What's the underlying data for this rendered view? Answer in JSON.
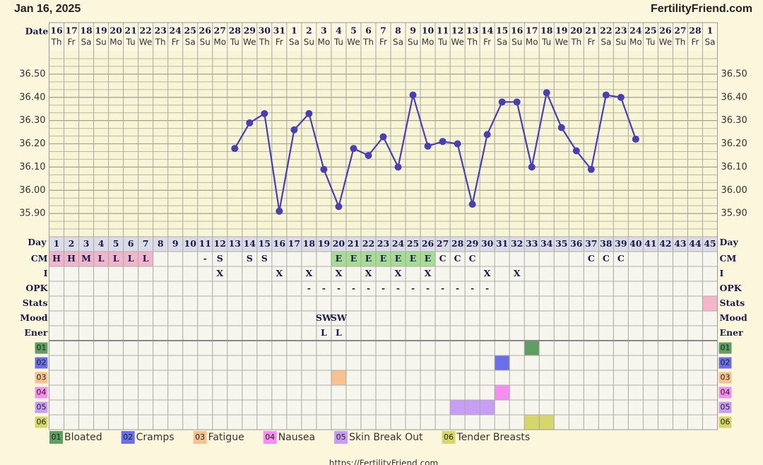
{
  "header": {
    "date": "Jan 16, 2025",
    "site": "FertilityFriend.com",
    "date_label": "Date",
    "day_label": "Day"
  },
  "footer_url": "https://FertilityFriend.com",
  "chart_data": {
    "type": "line",
    "categories": [
      "16",
      "17",
      "18",
      "19",
      "20",
      "21",
      "22",
      "23",
      "24",
      "25",
      "26",
      "27",
      "28",
      "29",
      "30",
      "31",
      "1",
      "2",
      "3",
      "4",
      "5",
      "6",
      "7",
      "8",
      "9",
      "10",
      "11",
      "12",
      "13",
      "14",
      "15",
      "16",
      "17",
      "18",
      "19",
      "20",
      "21",
      "22",
      "23",
      "24",
      "25",
      "26",
      "27",
      "28",
      "1"
    ],
    "weekdays": [
      "Th",
      "Fr",
      "Sa",
      "Su",
      "Mo",
      "Tu",
      "We",
      "Th",
      "Fr",
      "Sa",
      "Su",
      "Mo",
      "Tu",
      "We",
      "Th",
      "Fr",
      "Sa",
      "Su",
      "Mo",
      "Tu",
      "We",
      "Th",
      "Fr",
      "Sa",
      "Su",
      "Mo",
      "Tu",
      "We",
      "Th",
      "Fr",
      "Sa",
      "Su",
      "Mo",
      "Tu",
      "We",
      "Th",
      "Fr",
      "Sa",
      "Su",
      "Mo",
      "Tu",
      "We",
      "Th",
      "Fr",
      "Sa"
    ],
    "cycle_days": [
      1,
      2,
      3,
      4,
      5,
      6,
      7,
      8,
      9,
      10,
      11,
      12,
      13,
      14,
      15,
      16,
      17,
      18,
      19,
      20,
      21,
      22,
      23,
      24,
      25,
      26,
      27,
      28,
      29,
      30,
      31,
      32,
      33,
      34,
      35,
      36,
      37,
      38,
      39,
      40,
      41,
      42,
      43,
      44,
      45
    ],
    "series": [
      {
        "color": "#4a3fb2",
        "values": [
          null,
          null,
          null,
          null,
          null,
          null,
          null,
          null,
          null,
          null,
          null,
          null,
          36.18,
          36.29,
          36.33,
          35.91,
          36.26,
          36.33,
          36.09,
          35.93,
          36.18,
          36.15,
          36.23,
          36.1,
          36.41,
          36.19,
          36.21,
          36.2,
          35.94,
          36.24,
          36.38,
          36.38,
          36.1,
          36.42,
          36.27,
          36.17,
          36.09,
          36.41,
          36.4,
          36.22,
          null,
          null,
          null,
          null,
          null
        ]
      }
    ],
    "ylim": [
      35.8,
      36.6
    ],
    "yticks": [
      {
        "value": 35.9,
        "label": "35.90"
      },
      {
        "value": 36.0,
        "label": "36.00"
      },
      {
        "value": 36.1,
        "label": "36.10"
      },
      {
        "value": 36.2,
        "label": "36.20"
      },
      {
        "value": 36.3,
        "label": "36.30"
      },
      {
        "value": 36.4,
        "label": "36.40"
      },
      {
        "value": 36.5,
        "label": "36.50"
      }
    ],
    "grid": true
  },
  "rows": [
    {
      "label": "CM",
      "entries": [
        {
          "day": 1,
          "text": "H",
          "color": "#f0b6cc"
        },
        {
          "day": 2,
          "text": "H",
          "color": "#f0b6cc"
        },
        {
          "day": 3,
          "text": "M",
          "color": "#f0b6cc"
        },
        {
          "day": 4,
          "text": "L",
          "color": "#f0b6cc"
        },
        {
          "day": 5,
          "text": "L",
          "color": "#f0b6cc"
        },
        {
          "day": 6,
          "text": "L",
          "color": "#f0b6cc"
        },
        {
          "day": 7,
          "text": "L",
          "color": "#f0b6cc"
        },
        {
          "day": 11,
          "text": "-"
        },
        {
          "day": 12,
          "text": "S"
        },
        {
          "day": 14,
          "text": "S"
        },
        {
          "day": 15,
          "text": "S"
        },
        {
          "day": 20,
          "text": "E",
          "color": "#a6dc94"
        },
        {
          "day": 21,
          "text": "E",
          "color": "#a6dc94"
        },
        {
          "day": 22,
          "text": "E",
          "color": "#a6dc94"
        },
        {
          "day": 23,
          "text": "E",
          "color": "#a6dc94"
        },
        {
          "day": 24,
          "text": "E",
          "color": "#a6dc94"
        },
        {
          "day": 25,
          "text": "E",
          "color": "#a6dc94"
        },
        {
          "day": 26,
          "text": "E",
          "color": "#a6dc94"
        },
        {
          "day": 27,
          "text": "C"
        },
        {
          "day": 28,
          "text": "C"
        },
        {
          "day": 29,
          "text": "C"
        },
        {
          "day": 37,
          "text": "C"
        },
        {
          "day": 38,
          "text": "C"
        },
        {
          "day": 39,
          "text": "C"
        }
      ]
    },
    {
      "label": "I",
      "entries": [
        {
          "day": 12,
          "text": "X"
        },
        {
          "day": 16,
          "text": "X"
        },
        {
          "day": 18,
          "text": "X"
        },
        {
          "day": 20,
          "text": "X"
        },
        {
          "day": 22,
          "text": "X"
        },
        {
          "day": 24,
          "text": "X"
        },
        {
          "day": 26,
          "text": "X"
        },
        {
          "day": 30,
          "text": "X"
        },
        {
          "day": 32,
          "text": "X"
        }
      ]
    },
    {
      "label": "OPK",
      "entries": [
        {
          "day": 18,
          "text": "-"
        },
        {
          "day": 19,
          "text": "-"
        },
        {
          "day": 20,
          "text": "-"
        },
        {
          "day": 21,
          "text": "-"
        },
        {
          "day": 22,
          "text": "-"
        },
        {
          "day": 23,
          "text": "-"
        },
        {
          "day": 24,
          "text": "-"
        },
        {
          "day": 25,
          "text": "-"
        },
        {
          "day": 26,
          "text": "-"
        },
        {
          "day": 27,
          "text": "-"
        },
        {
          "day": 28,
          "text": "-"
        },
        {
          "day": 29,
          "text": "-"
        },
        {
          "day": 30,
          "text": "-"
        }
      ]
    },
    {
      "label": "Stats",
      "entries": [
        {
          "day": 45,
          "color": "#f4b6c8"
        }
      ]
    },
    {
      "label": "Mood",
      "entries": [
        {
          "day": 19,
          "text": "SW"
        },
        {
          "day": 20,
          "text": "SW"
        }
      ]
    },
    {
      "label": "Ener",
      "entries": [
        {
          "day": 19,
          "text": "L"
        },
        {
          "day": 20,
          "text": "L"
        }
      ]
    }
  ],
  "symptoms": [
    {
      "code": "01",
      "name": "Bloated",
      "color": "#5e9e62",
      "days": [
        33
      ]
    },
    {
      "code": "02",
      "name": "Cramps",
      "color": "#6a6ee8",
      "days": [
        31
      ]
    },
    {
      "code": "03",
      "name": "Fatigue",
      "color": "#f8c190",
      "days": [
        20
      ]
    },
    {
      "code": "04",
      "name": "Nausea",
      "color": "#f58ef0",
      "days": [
        31
      ]
    },
    {
      "code": "05",
      "name": "Skin Break Out",
      "color": "#c89df5",
      "days": [
        28,
        29,
        30
      ]
    },
    {
      "code": "06",
      "name": "Tender Breasts",
      "color": "#d6d66a",
      "days": [
        33,
        34
      ]
    }
  ]
}
